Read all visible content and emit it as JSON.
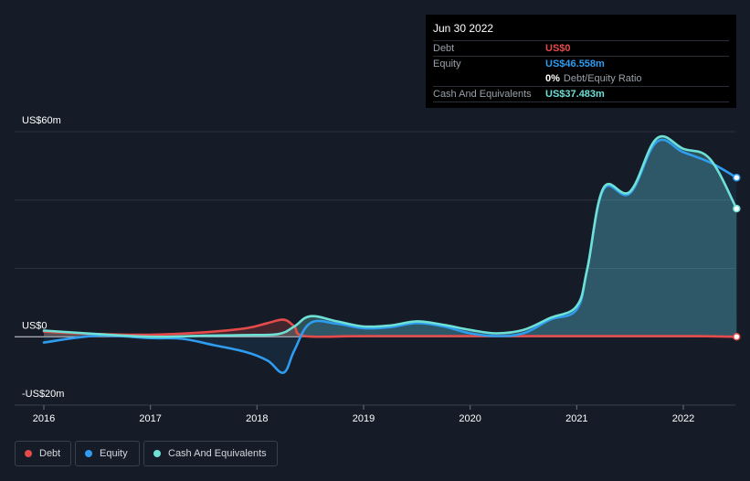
{
  "tooltip": {
    "date": "Jun 30 2022",
    "debt_label": "Debt",
    "debt_value": "US$0",
    "equity_label": "Equity",
    "equity_value": "US$46.558m",
    "ratio_value": "0%",
    "ratio_label": "Debt/Equity Ratio",
    "cash_label": "Cash And Equivalents",
    "cash_value": "US$37.483m"
  },
  "legend": {
    "debt": "Debt",
    "equity": "Equity",
    "cash": "Cash And Equivalents"
  },
  "colors": {
    "debt": "#e64b4b",
    "equity": "#2e9cef",
    "cash": "#6ee0d6",
    "background": "#151b27",
    "grid": "#2b3140"
  },
  "chart_data": {
    "type": "line",
    "title": "",
    "xlabel": "",
    "ylabel": "",
    "ylim": [
      -20,
      60
    ],
    "xlim": [
      2016.0,
      2022.5
    ],
    "y_tick_labels": [
      {
        "value": 60,
        "label": "US$60m"
      },
      {
        "value": 0,
        "label": "US$0"
      },
      {
        "value": -20,
        "label": "-US$20m"
      }
    ],
    "x_ticks": [
      2016,
      2017,
      2018,
      2019,
      2020,
      2021,
      2022
    ],
    "x_tick_labels": [
      "2016",
      "2017",
      "2018",
      "2019",
      "2020",
      "2021",
      "2022"
    ],
    "series": [
      {
        "name": "Debt",
        "key": "debt",
        "x": [
          2016.0,
          2016.5,
          2017.0,
          2017.5,
          2017.9,
          2018.1,
          2018.25,
          2018.35,
          2018.45,
          2019.0,
          2020.0,
          2021.0,
          2022.0,
          2022.5
        ],
        "values": [
          1.5,
          0.8,
          0.6,
          1.3,
          2.5,
          4.0,
          5.0,
          3.0,
          0.2,
          0.2,
          0.2,
          0.2,
          0.2,
          0.0
        ]
      },
      {
        "name": "Equity",
        "key": "equity",
        "x": [
          2016.0,
          2016.5,
          2017.0,
          2017.3,
          2017.6,
          2017.9,
          2018.1,
          2018.25,
          2018.35,
          2018.5,
          2018.75,
          2019.0,
          2019.25,
          2019.5,
          2019.75,
          2020.0,
          2020.25,
          2020.5,
          2020.75,
          2021.0,
          2021.1,
          2021.25,
          2021.5,
          2021.75,
          2022.0,
          2022.25,
          2022.5
        ],
        "values": [
          -1.7,
          0.3,
          -0.4,
          -0.6,
          -2.5,
          -4.5,
          -7.0,
          -10.5,
          -4.0,
          4.0,
          3.8,
          2.5,
          2.8,
          4.0,
          3.0,
          1.0,
          0.2,
          1.0,
          5.0,
          8.0,
          20.0,
          43.0,
          42.0,
          57.0,
          54.0,
          51.0,
          46.558
        ]
      },
      {
        "name": "Cash And Equivalents",
        "key": "cash",
        "x": [
          2016.0,
          2016.5,
          2017.0,
          2017.5,
          2017.9,
          2018.2,
          2018.35,
          2018.5,
          2018.75,
          2019.0,
          2019.25,
          2019.5,
          2019.75,
          2020.0,
          2020.25,
          2020.5,
          2020.75,
          2021.0,
          2021.1,
          2021.25,
          2021.5,
          2021.75,
          2022.0,
          2022.25,
          2022.5
        ],
        "values": [
          1.8,
          0.8,
          0.0,
          0.3,
          0.5,
          0.8,
          3.0,
          6.0,
          4.5,
          3.0,
          3.3,
          4.5,
          3.5,
          2.0,
          1.0,
          2.0,
          5.5,
          9.0,
          20.0,
          43.5,
          42.5,
          58.0,
          55.0,
          52.0,
          37.483
        ]
      }
    ]
  }
}
